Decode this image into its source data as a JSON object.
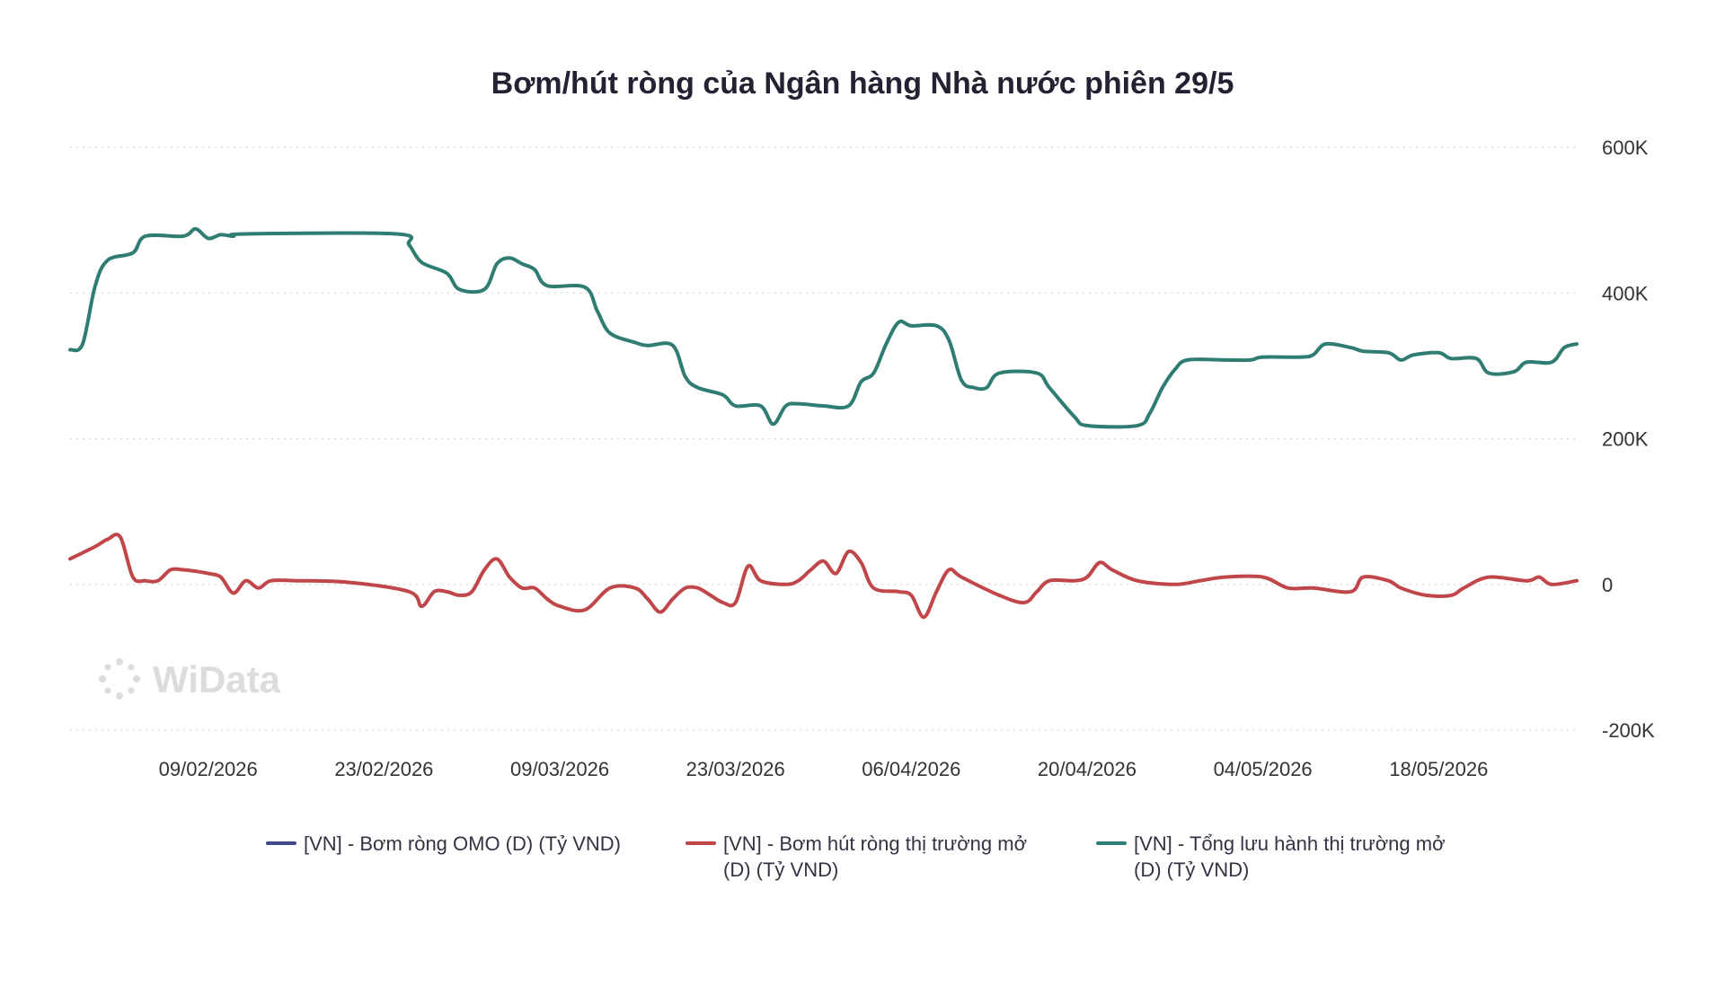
{
  "chart_data": {
    "type": "line",
    "title": "Bơm/hút ròng của Ngân hàng Nhà nước phiên 29/5",
    "xlabel": "",
    "ylabel": "",
    "y_ticks": [
      "600K",
      "400K",
      "200K",
      "0",
      "-200K"
    ],
    "ylim": [
      -200000,
      600000
    ],
    "x_ticks": [
      "09/02/2026",
      "23/02/2026",
      "09/03/2026",
      "23/03/2026",
      "06/04/2026",
      "20/04/2026",
      "04/05/2026",
      "18/05/2026"
    ],
    "xlim": [
      "2026-01-29",
      "2026-05-29"
    ],
    "grid": true,
    "legend_position": "bottom",
    "watermark": "WiData",
    "series": [
      {
        "name": "[VN] - Bơm ròng OMO (D) (Tỷ VND)",
        "color": "#3d4a8f",
        "points": []
      },
      {
        "name": "[VN] - Bơm hút ròng thị trường mở (D) (Tỷ VND)",
        "color": "#c0464a",
        "points": [
          [
            "2026-01-29",
            35000
          ],
          [
            "2026-01-31",
            52000
          ],
          [
            "2026-02-01",
            62000
          ],
          [
            "2026-02-02",
            65000
          ],
          [
            "2026-02-03",
            10000
          ],
          [
            "2026-02-04",
            5000
          ],
          [
            "2026-02-05",
            5000
          ],
          [
            "2026-02-06",
            20000
          ],
          [
            "2026-02-07",
            20000
          ],
          [
            "2026-02-08",
            18000
          ],
          [
            "2026-02-09",
            15000
          ],
          [
            "2026-02-10",
            10000
          ],
          [
            "2026-02-11",
            -12000
          ],
          [
            "2026-02-12",
            5000
          ],
          [
            "2026-02-13",
            -5000
          ],
          [
            "2026-02-14",
            5000
          ],
          [
            "2026-02-16",
            5000
          ],
          [
            "2026-02-20",
            3000
          ],
          [
            "2026-02-25",
            -10000
          ],
          [
            "2026-02-26",
            -30000
          ],
          [
            "2026-02-27",
            -10000
          ],
          [
            "2026-02-28",
            -10000
          ],
          [
            "2026-03-01",
            -15000
          ],
          [
            "2026-03-02",
            -10000
          ],
          [
            "2026-03-03",
            20000
          ],
          [
            "2026-03-04",
            35000
          ],
          [
            "2026-03-05",
            10000
          ],
          [
            "2026-03-06",
            -5000
          ],
          [
            "2026-03-07",
            -5000
          ],
          [
            "2026-03-08",
            -20000
          ],
          [
            "2026-03-09",
            -30000
          ],
          [
            "2026-03-11",
            -35000
          ],
          [
            "2026-03-13",
            -5000
          ],
          [
            "2026-03-15",
            -5000
          ],
          [
            "2026-03-16",
            -20000
          ],
          [
            "2026-03-17",
            -38000
          ],
          [
            "2026-03-18",
            -20000
          ],
          [
            "2026-03-19",
            -5000
          ],
          [
            "2026-03-20",
            -5000
          ],
          [
            "2026-03-21",
            -15000
          ],
          [
            "2026-03-22",
            -25000
          ],
          [
            "2026-03-23",
            -25000
          ],
          [
            "2026-03-24",
            25000
          ],
          [
            "2026-03-25",
            5000
          ],
          [
            "2026-03-27",
            0
          ],
          [
            "2026-03-28",
            5000
          ],
          [
            "2026-03-29",
            20000
          ],
          [
            "2026-03-30",
            32000
          ],
          [
            "2026-03-31",
            15000
          ],
          [
            "2026-04-01",
            45000
          ],
          [
            "2026-04-02",
            30000
          ],
          [
            "2026-04-03",
            -5000
          ],
          [
            "2026-04-05",
            -10000
          ],
          [
            "2026-04-06",
            -15000
          ],
          [
            "2026-04-07",
            -45000
          ],
          [
            "2026-04-08",
            -10000
          ],
          [
            "2026-04-09",
            20000
          ],
          [
            "2026-04-10",
            10000
          ],
          [
            "2026-04-13",
            -15000
          ],
          [
            "2026-04-15",
            -25000
          ],
          [
            "2026-04-16",
            -10000
          ],
          [
            "2026-04-17",
            5000
          ],
          [
            "2026-04-19",
            5000
          ],
          [
            "2026-04-20",
            10000
          ],
          [
            "2026-04-21",
            30000
          ],
          [
            "2026-04-22",
            20000
          ],
          [
            "2026-04-24",
            5000
          ],
          [
            "2026-04-27",
            0
          ],
          [
            "2026-04-29",
            5000
          ],
          [
            "2026-05-01",
            10000
          ],
          [
            "2026-05-04",
            10000
          ],
          [
            "2026-05-06",
            -5000
          ],
          [
            "2026-05-08",
            -5000
          ],
          [
            "2026-05-11",
            -10000
          ],
          [
            "2026-05-12",
            10000
          ],
          [
            "2026-05-14",
            5000
          ],
          [
            "2026-05-15",
            -5000
          ],
          [
            "2026-05-17",
            -15000
          ],
          [
            "2026-05-19",
            -15000
          ],
          [
            "2026-05-20",
            -5000
          ],
          [
            "2026-05-22",
            10000
          ],
          [
            "2026-05-25",
            5000
          ],
          [
            "2026-05-26",
            10000
          ],
          [
            "2026-05-27",
            0
          ],
          [
            "2026-05-29",
            5000
          ]
        ]
      },
      {
        "name": "[VN] - Tổng lưu hành thị trường mở (D) (Tỷ VND)",
        "color": "#2f7d72",
        "points": [
          [
            "2026-01-29",
            322000
          ],
          [
            "2026-01-30",
            330000
          ],
          [
            "2026-01-31",
            410000
          ],
          [
            "2026-02-01",
            445000
          ],
          [
            "2026-02-03",
            455000
          ],
          [
            "2026-02-04",
            478000
          ],
          [
            "2026-02-07",
            478000
          ],
          [
            "2026-02-08",
            488000
          ],
          [
            "2026-02-09",
            475000
          ],
          [
            "2026-02-10",
            480000
          ],
          [
            "2026-02-11",
            478000
          ],
          [
            "2026-02-12",
            481000
          ],
          [
            "2026-02-24",
            481000
          ],
          [
            "2026-02-25",
            466000
          ],
          [
            "2026-02-26",
            442000
          ],
          [
            "2026-02-28",
            427000
          ],
          [
            "2026-03-01",
            405000
          ],
          [
            "2026-03-03",
            405000
          ],
          [
            "2026-03-04",
            440000
          ],
          [
            "2026-03-05",
            448000
          ],
          [
            "2026-03-06",
            440000
          ],
          [
            "2026-03-07",
            432000
          ],
          [
            "2026-03-08",
            410000
          ],
          [
            "2026-03-11",
            408000
          ],
          [
            "2026-03-12",
            375000
          ],
          [
            "2026-03-13",
            345000
          ],
          [
            "2026-03-15",
            332000
          ],
          [
            "2026-03-16",
            328000
          ],
          [
            "2026-03-18",
            328000
          ],
          [
            "2026-03-19",
            285000
          ],
          [
            "2026-03-20",
            270000
          ],
          [
            "2026-03-22",
            260000
          ],
          [
            "2026-03-23",
            245000
          ],
          [
            "2026-03-25",
            245000
          ],
          [
            "2026-03-26",
            220000
          ],
          [
            "2026-03-27",
            245000
          ],
          [
            "2026-03-28",
            248000
          ],
          [
            "2026-03-30",
            245000
          ],
          [
            "2026-04-01",
            245000
          ],
          [
            "2026-04-02",
            278000
          ],
          [
            "2026-04-03",
            290000
          ],
          [
            "2026-04-04",
            330000
          ],
          [
            "2026-04-05",
            360000
          ],
          [
            "2026-04-06",
            355000
          ],
          [
            "2026-04-08",
            355000
          ],
          [
            "2026-04-09",
            335000
          ],
          [
            "2026-04-10",
            280000
          ],
          [
            "2026-04-11",
            270000
          ],
          [
            "2026-04-12",
            270000
          ],
          [
            "2026-04-13",
            290000
          ],
          [
            "2026-04-16",
            290000
          ],
          [
            "2026-04-17",
            270000
          ],
          [
            "2026-04-19",
            230000
          ],
          [
            "2026-04-20",
            218000
          ],
          [
            "2026-04-24",
            218000
          ],
          [
            "2026-04-25",
            235000
          ],
          [
            "2026-04-26",
            270000
          ],
          [
            "2026-04-27",
            295000
          ],
          [
            "2026-04-28",
            308000
          ],
          [
            "2026-05-01",
            308000
          ],
          [
            "2026-05-03",
            308000
          ],
          [
            "2026-05-04",
            312000
          ],
          [
            "2026-05-07",
            312000
          ],
          [
            "2026-05-08",
            315000
          ],
          [
            "2026-05-09",
            330000
          ],
          [
            "2026-05-11",
            325000
          ],
          [
            "2026-05-12",
            320000
          ],
          [
            "2026-05-14",
            318000
          ],
          [
            "2026-05-15",
            308000
          ],
          [
            "2026-05-16",
            315000
          ],
          [
            "2026-05-18",
            318000
          ],
          [
            "2026-05-19",
            310000
          ],
          [
            "2026-05-21",
            310000
          ],
          [
            "2026-05-22",
            290000
          ],
          [
            "2026-05-24",
            292000
          ],
          [
            "2026-05-25",
            305000
          ],
          [
            "2026-05-27",
            305000
          ],
          [
            "2026-05-28",
            325000
          ],
          [
            "2026-05-29",
            330000
          ]
        ]
      }
    ]
  }
}
